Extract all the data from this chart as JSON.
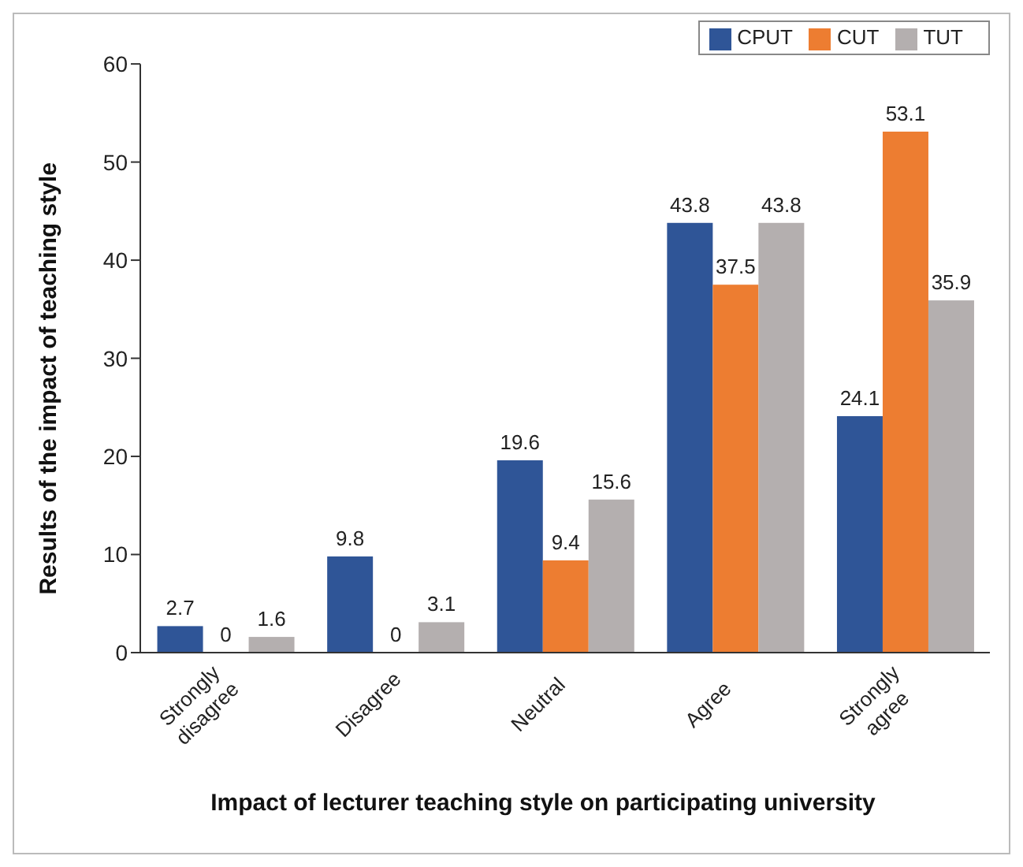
{
  "chart_data": {
    "type": "bar",
    "xlabel": "Impact of lecturer teaching style on participating university",
    "ylabel": "Results of the impact of teaching style",
    "categories": [
      "Strongly disagree",
      "Disagree",
      "Neutral",
      "Agree",
      "Strongly agree"
    ],
    "series": [
      {
        "name": "CPUT",
        "color": "#2f5597",
        "values": [
          2.7,
          9.8,
          19.6,
          43.8,
          24.1
        ]
      },
      {
        "name": "CUT",
        "color": "#ed7d31",
        "values": [
          0,
          0,
          9.4,
          37.5,
          53.1
        ]
      },
      {
        "name": "TUT",
        "color": "#b4afaf",
        "values": [
          1.6,
          3.1,
          15.6,
          43.8,
          35.9
        ]
      }
    ],
    "ylim": [
      0,
      60
    ],
    "yticks": [
      0,
      10,
      20,
      30,
      40,
      50,
      60
    ],
    "grid": false,
    "legend": "top right",
    "data_labels": true
  }
}
